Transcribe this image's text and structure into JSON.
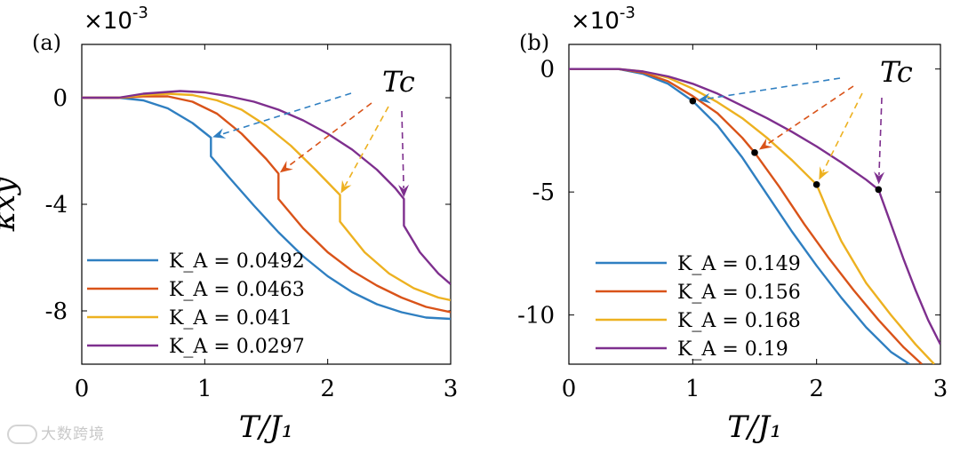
{
  "colors": {
    "blue": "#2f7fc1",
    "orange": "#d95319",
    "yellow": "#edb120",
    "purple": "#7e2f8e",
    "axis": "#000000"
  },
  "watermark": {
    "text": "大数跨境"
  },
  "chart_data": [
    {
      "type": "line",
      "panel_label": "(a)",
      "multiplier": "×10",
      "multiplier_exp": "-3",
      "xlabel": "T/J₁",
      "ylabel": "κxy",
      "xlim": [
        0,
        3
      ],
      "ylim": [
        -10,
        2
      ],
      "xticks": [
        0,
        1,
        2,
        3
      ],
      "yticks": [
        {
          "v": 0,
          "label": "0"
        },
        {
          "v": -4,
          "label": "-4"
        },
        {
          "v": -8,
          "label": "-8"
        }
      ],
      "annotation": "Tc",
      "legend_position": "bottom-left",
      "series": [
        {
          "name": "K_A = 0.0492",
          "key": "0.0492",
          "color_key": "blue",
          "x": [
            0,
            0.3,
            0.5,
            0.7,
            0.9,
            1.05,
            1.05,
            1.2,
            1.4,
            1.6,
            1.8,
            2.0,
            2.2,
            2.4,
            2.6,
            2.8,
            3.0
          ],
          "y": [
            0,
            0,
            -0.1,
            -0.4,
            -0.95,
            -1.5,
            -2.2,
            -3.0,
            -4.05,
            -5.05,
            -5.95,
            -6.7,
            -7.3,
            -7.75,
            -8.05,
            -8.25,
            -8.3
          ],
          "tc": [
            1.05,
            -1.5
          ]
        },
        {
          "name": "K_A = 0.0463",
          "key": "0.0463",
          "color_key": "orange",
          "x": [
            0,
            0.3,
            0.5,
            0.7,
            0.9,
            1.1,
            1.3,
            1.5,
            1.6,
            1.6,
            1.8,
            2.0,
            2.2,
            2.4,
            2.6,
            2.8,
            3.0
          ],
          "y": [
            0,
            0,
            0.05,
            0.05,
            -0.15,
            -0.6,
            -1.35,
            -2.3,
            -2.85,
            -3.8,
            -4.9,
            -5.8,
            -6.5,
            -7.05,
            -7.5,
            -7.85,
            -8.05
          ],
          "tc": [
            1.6,
            -2.85
          ]
        },
        {
          "name": "K_A = 0.041",
          "key": "0.041",
          "color_key": "yellow",
          "x": [
            0,
            0.3,
            0.5,
            0.7,
            0.9,
            1.1,
            1.3,
            1.5,
            1.7,
            1.9,
            2.1,
            2.1,
            2.3,
            2.5,
            2.7,
            2.9,
            3.0
          ],
          "y": [
            0,
            0,
            0.1,
            0.15,
            0.1,
            -0.1,
            -0.45,
            -1.05,
            -1.8,
            -2.7,
            -3.65,
            -4.65,
            -5.8,
            -6.6,
            -7.15,
            -7.5,
            -7.6
          ],
          "tc": [
            2.1,
            -3.65
          ]
        },
        {
          "name": "K_A = 0.0297",
          "key": "0.0297",
          "color_key": "purple",
          "x": [
            0,
            0.3,
            0.5,
            0.8,
            1.0,
            1.2,
            1.4,
            1.6,
            1.8,
            2.0,
            2.2,
            2.4,
            2.55,
            2.62,
            2.62,
            2.75,
            2.9,
            3.0
          ],
          "y": [
            0,
            0,
            0.15,
            0.25,
            0.2,
            0.05,
            -0.15,
            -0.45,
            -0.85,
            -1.35,
            -1.95,
            -2.7,
            -3.4,
            -3.8,
            -4.8,
            -5.8,
            -6.6,
            -7.0
          ],
          "tc": [
            2.62,
            -3.8
          ]
        }
      ]
    },
    {
      "type": "line",
      "panel_label": "(b)",
      "multiplier": "×10",
      "multiplier_exp": "-3",
      "xlabel": "T/J₁",
      "ylabel": "",
      "xlim": [
        0,
        3
      ],
      "ylim": [
        -12,
        1
      ],
      "xticks": [
        0,
        1,
        2,
        3
      ],
      "yticks": [
        {
          "v": 0,
          "label": "0"
        },
        {
          "v": -5,
          "label": "-5"
        },
        {
          "v": -10,
          "label": "-10"
        }
      ],
      "annotation": "Tc",
      "legend_position": "bottom-left",
      "series": [
        {
          "name": "K_A = 0.149",
          "key": "0.149",
          "color_key": "blue",
          "x": [
            0,
            0.4,
            0.6,
            0.8,
            1.0,
            1.2,
            1.4,
            1.6,
            1.8,
            2.0,
            2.2,
            2.4,
            2.6,
            2.75
          ],
          "y": [
            0,
            0,
            -0.2,
            -0.6,
            -1.3,
            -2.3,
            -3.6,
            -5.1,
            -6.6,
            -8.0,
            -9.3,
            -10.5,
            -11.5,
            -12
          ]
        },
        {
          "name": "K_A = 0.156",
          "key": "0.156",
          "color_key": "orange",
          "x": [
            0,
            0.4,
            0.6,
            0.8,
            1.0,
            1.2,
            1.4,
            1.5,
            1.7,
            1.9,
            2.1,
            2.3,
            2.5,
            2.7,
            2.85
          ],
          "y": [
            0,
            0,
            -0.15,
            -0.5,
            -1.1,
            -1.8,
            -2.8,
            -3.4,
            -4.8,
            -6.3,
            -7.7,
            -9.0,
            -10.2,
            -11.3,
            -12
          ]
        },
        {
          "name": "K_A = 0.168",
          "key": "0.168",
          "color_key": "yellow",
          "x": [
            0,
            0.4,
            0.6,
            0.8,
            1.0,
            1.2,
            1.4,
            1.6,
            1.8,
            2.0,
            2.1,
            2.2,
            2.4,
            2.6,
            2.8,
            2.95
          ],
          "y": [
            0,
            0,
            -0.1,
            -0.35,
            -0.8,
            -1.35,
            -2.0,
            -2.8,
            -3.7,
            -4.7,
            -5.9,
            -7.0,
            -8.7,
            -10.0,
            -11.2,
            -12
          ]
        },
        {
          "name": "K_A = 0.19",
          "key": "0.19",
          "color_key": "purple",
          "x": [
            0,
            0.4,
            0.6,
            0.8,
            1.0,
            1.2,
            1.4,
            1.6,
            1.8,
            2.0,
            2.2,
            2.4,
            2.5,
            2.6,
            2.7,
            2.8,
            2.9,
            3.0
          ],
          "y": [
            0,
            0,
            -0.1,
            -0.3,
            -0.6,
            -1.0,
            -1.5,
            -2.0,
            -2.55,
            -3.15,
            -3.8,
            -4.5,
            -4.9,
            -6.3,
            -7.7,
            -9.0,
            -10.2,
            -11.2
          ]
        }
      ],
      "tc_points": [
        [
          1.0,
          -1.3
        ],
        [
          1.5,
          -3.4
        ],
        [
          2.0,
          -4.7
        ],
        [
          2.5,
          -4.9
        ]
      ]
    }
  ]
}
